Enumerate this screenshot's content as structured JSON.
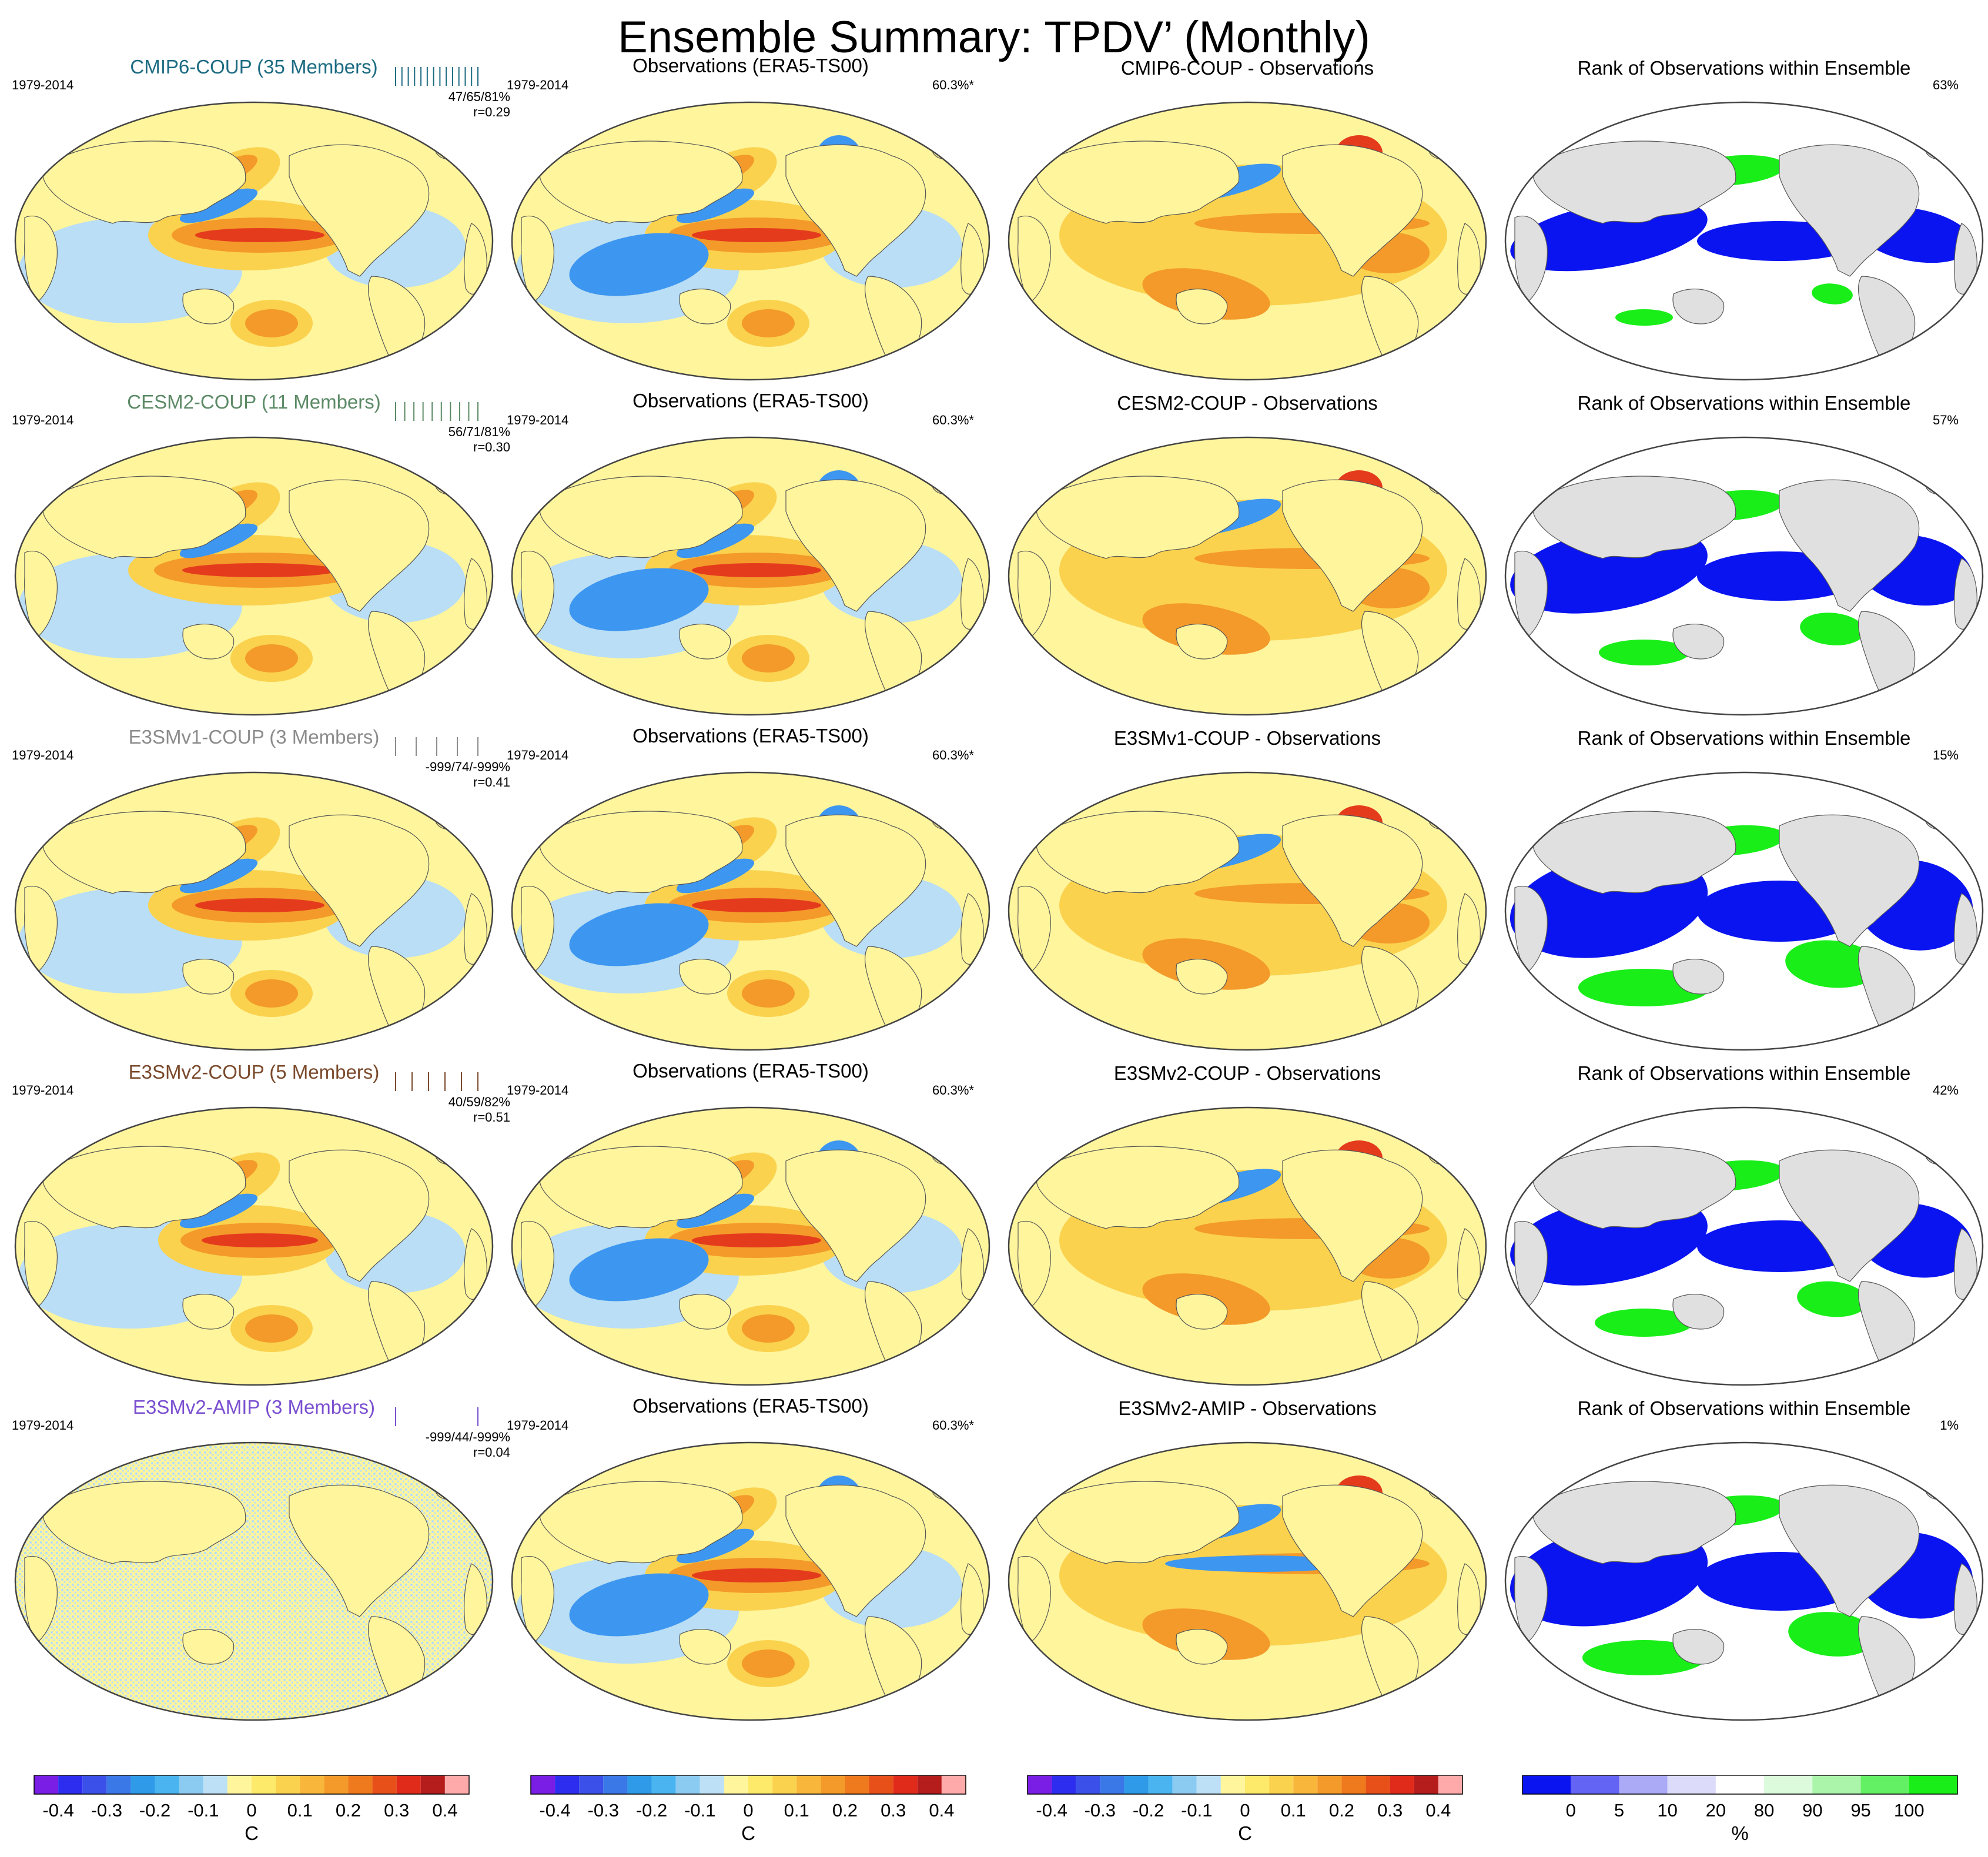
{
  "title": "Ensemble Summary: TPDV’ (Monthly)",
  "period": "1979-2014",
  "obs_title": "Observations (ERA5-TS00)",
  "obs_stat": "60.3%*",
  "rank_title": "Rank of Observations within Ensemble",
  "colors": {
    "land_gray": "#e0e0e0",
    "ocean_base": "#fff59d",
    "cool": "#b9def5",
    "blue": "#3d96f0",
    "warm": "#fbd24e",
    "orange": "#f39a2a",
    "red": "#e53b1d",
    "rank_blue": "#0a14f0",
    "rank_green": "#19ee19"
  },
  "rows": [
    {
      "model_title": "CMIP6-COUP (35 Members)",
      "model_color": "#1c6b82",
      "stats": "47/65/81%",
      "corr": "r=0.29",
      "diff_title": "CMIP6-COUP - Observations",
      "rank_pct": "63%",
      "tick_color": "#1c6b82"
    },
    {
      "model_title": "CESM2-COUP (11 Members)",
      "model_color": "#5c8a66",
      "stats": "56/71/81%",
      "corr": "r=0.30",
      "diff_title": "CESM2-COUP - Observations",
      "rank_pct": "57%",
      "tick_color": "#5c8a66"
    },
    {
      "model_title": "E3SMv1-COUP (3 Members)",
      "model_color": "#8c8c8c",
      "stats": "-999/74/-999%",
      "corr": "r=0.41",
      "diff_title": "E3SMv1-COUP - Observations",
      "rank_pct": "15%",
      "tick_color": "#8c8c8c"
    },
    {
      "model_title": "E3SMv2-COUP (5 Members)",
      "model_color": "#7b4a2c",
      "stats": "40/59/82%",
      "corr": "r=0.51",
      "diff_title": "E3SMv2-COUP - Observations",
      "rank_pct": "42%",
      "tick_color": "#7b4a2c"
    },
    {
      "model_title": "E3SMv2-AMIP (3 Members)",
      "model_color": "#7a4fd0",
      "stats": "-999/44/-999%",
      "corr": "r=0.04",
      "diff_title": "E3SMv2-AMIP - Observations",
      "rank_pct": "1%",
      "tick_color": "#7a4fd0"
    }
  ],
  "chart_data": [
    {
      "type": "heatmap",
      "description_role": "shared colorbar for model, observation and difference maps",
      "unit": "C",
      "levels": [
        -0.45,
        -0.4,
        -0.35,
        -0.3,
        -0.25,
        -0.2,
        -0.15,
        -0.1,
        -0.05,
        0,
        0.05,
        0.1,
        0.15,
        0.2,
        0.25,
        0.3,
        0.35,
        0.4,
        0.45
      ],
      "colors": [
        "#7a1ee6",
        "#2d2df0",
        "#3a50e8",
        "#3a78e8",
        "#2f9be8",
        "#49b4ef",
        "#8ccbf1",
        "#bde0f6",
        "#fff59d",
        "#fdea6b",
        "#fbd24e",
        "#f8b73a",
        "#f39a2a",
        "#ef7a1e",
        "#e8501a",
        "#e02a1a",
        "#b51c1c",
        "#ffaaaa"
      ],
      "tick_labels": [
        "-0.4",
        "-0.3",
        "-0.2",
        "-0.1",
        "0",
        "0.1",
        "0.2",
        "0.3",
        "0.4"
      ],
      "tick_values": [
        -0.4,
        -0.3,
        -0.2,
        -0.1,
        0,
        0.1,
        0.2,
        0.3,
        0.4
      ]
    },
    {
      "type": "heatmap",
      "description_role": "rank colorbar",
      "unit": "%",
      "levels": [
        0,
        5,
        10,
        20,
        80,
        90,
        95,
        100
      ],
      "colors": [
        "#0a14f0",
        "#6464f4",
        "#aaaaf6",
        "#dcdcfa",
        "#ffffff",
        "#dcfadc",
        "#aaf5aa",
        "#64f064",
        "#19ee19"
      ],
      "tick_labels": [
        "0",
        "5",
        "10",
        "20",
        "80",
        "90",
        "95",
        "100"
      ]
    }
  ]
}
